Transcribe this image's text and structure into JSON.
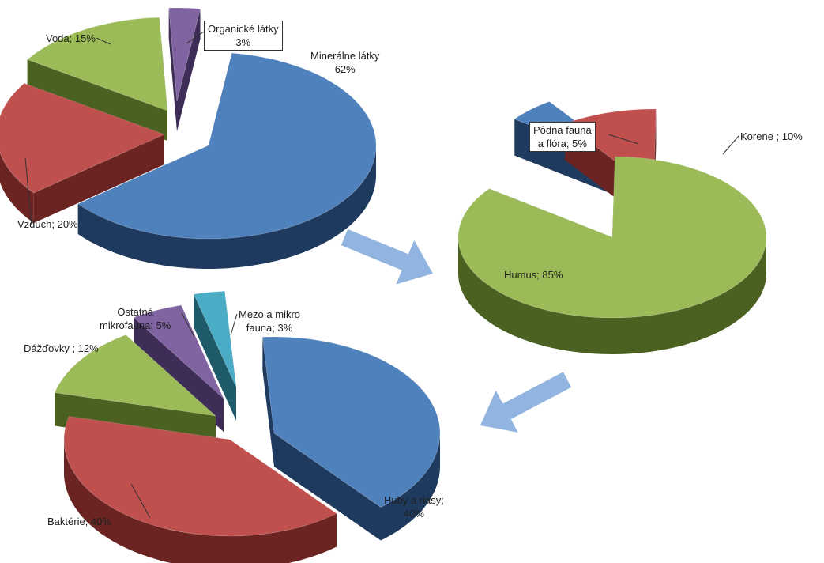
{
  "colors": {
    "blue": "#4f81bd",
    "blue_side": "#1f3a5f",
    "red": "#c0504d",
    "red_side": "#6b2422",
    "green": "#9bbb59",
    "green_side": "#4a6121",
    "purple": "#8064a2",
    "purple_side": "#3e2d57",
    "teal": "#4bacc6",
    "teal_side": "#1f5a6a",
    "arrow": "#92b4e0"
  },
  "chart_data": [
    {
      "type": "pie",
      "style": "3d-exploded",
      "slices": [
        {
          "label": "Minerálne látky",
          "value": 62,
          "color": "blue",
          "text": [
            "Minerálne látky",
            "62%"
          ]
        },
        {
          "label": "Vzduch",
          "value": 20,
          "color": "red",
          "text": [
            "Vzduch; 20%"
          ]
        },
        {
          "label": "Voda",
          "value": 15,
          "color": "green",
          "text": [
            "Voda; 15%"
          ]
        },
        {
          "label": "Organické látky",
          "value": 3,
          "color": "purple",
          "text": [
            "Organické látky",
            "3%"
          ]
        }
      ]
    },
    {
      "type": "pie",
      "style": "3d-exploded",
      "slices": [
        {
          "label": "Humus",
          "value": 85,
          "color": "green",
          "text": [
            "Humus; 85%"
          ]
        },
        {
          "label": "Pôdna fauna a flóra",
          "value": 5,
          "color": "blue",
          "text": [
            "Pôdna fauna",
            "a flóra; 5%"
          ]
        },
        {
          "label": "Korene",
          "value": 10,
          "color": "red",
          "text": [
            "Korene ; 10%"
          ]
        }
      ]
    },
    {
      "type": "pie",
      "style": "3d-exploded",
      "slices": [
        {
          "label": "Huby a riasy",
          "value": 40,
          "color": "blue",
          "text": [
            "Huby a riasy;",
            "40%"
          ]
        },
        {
          "label": "Baktérie",
          "value": 40,
          "color": "red",
          "text": [
            "Baktérie; 40%"
          ]
        },
        {
          "label": "Dážďovky",
          "value": 12,
          "color": "green",
          "text": [
            "Dážďovky ; 12%"
          ]
        },
        {
          "label": "Ostatná mikrofauna",
          "value": 5,
          "color": "purple",
          "text": [
            "Ostatná",
            "mikrofauna; 5%"
          ]
        },
        {
          "label": "Mezo a mikro fauna",
          "value": 3,
          "color": "teal",
          "text": [
            "Mezo a mikro",
            "fauna; 3%"
          ]
        }
      ]
    }
  ]
}
